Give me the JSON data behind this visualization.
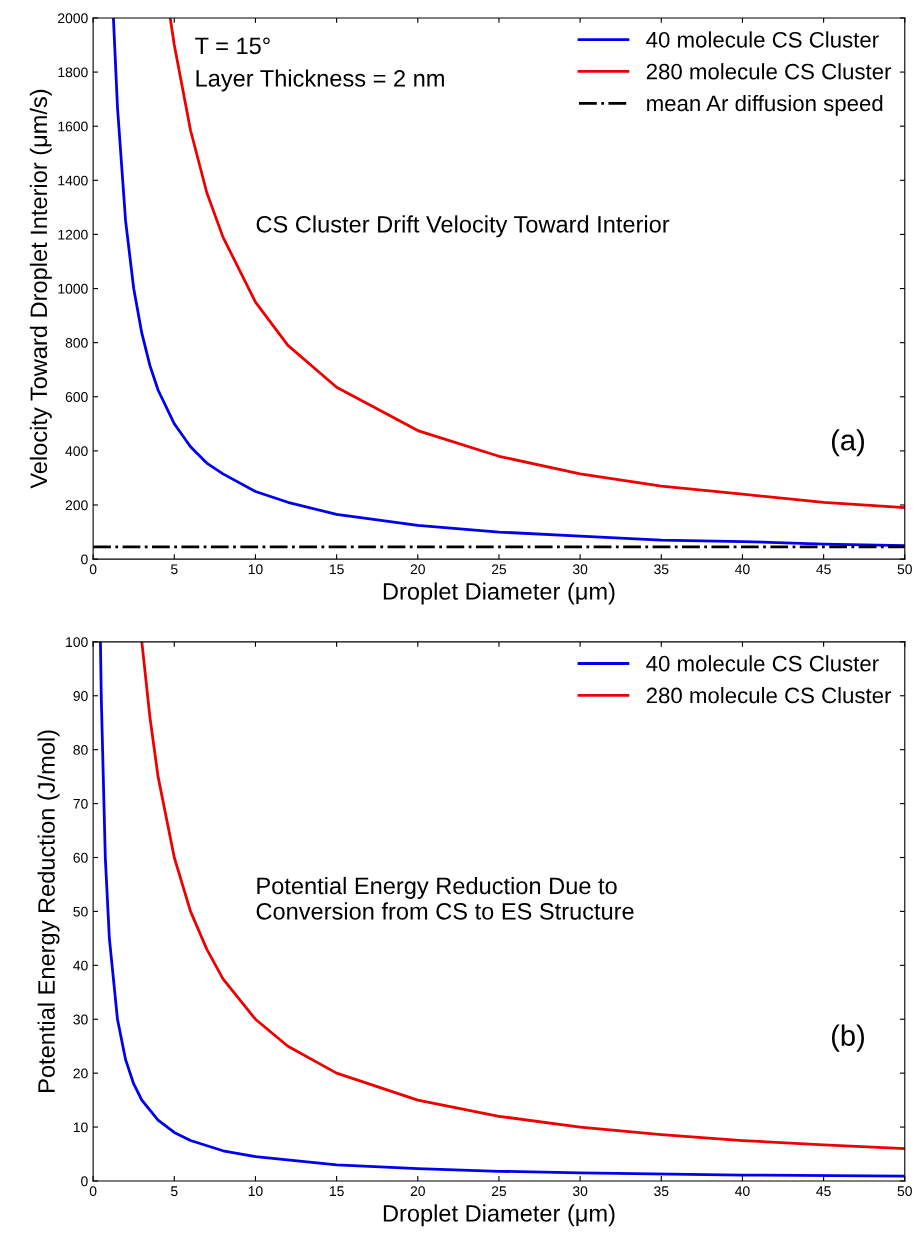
{
  "chart_data": [
    {
      "type": "line",
      "xlabel": "Droplet Diameter (μm)",
      "ylabel": "Velocity Toward Droplet Interior (μm/s)",
      "xlim": [
        0,
        50
      ],
      "ylim": [
        0,
        2000
      ],
      "xticks": [
        0,
        5,
        10,
        15,
        20,
        25,
        30,
        35,
        40,
        45,
        50
      ],
      "yticks": [
        0,
        200,
        400,
        600,
        800,
        1000,
        1200,
        1400,
        1600,
        1800,
        2000
      ],
      "legend": "top right",
      "grid": false,
      "line_style": "solid",
      "annotations": [
        "T = 15°",
        "Layer Thickness = 2 nm",
        "CS Cluster Drift Velocity Toward Interior",
        "(a)"
      ],
      "ref_lines": [
        {
          "axis": "y",
          "value": 45,
          "label": "mean Ar diffusion speed",
          "color": "#000000",
          "line_style": "dashdot"
        }
      ],
      "series": [
        {
          "name": "40 molecule CS Cluster",
          "color": "#0000ee",
          "x": [
            1.25,
            1.5,
            2,
            2.5,
            3,
            3.5,
            4,
            5,
            6,
            7,
            8,
            10,
            12,
            15,
            20,
            25,
            30,
            35,
            40,
            45,
            50
          ],
          "values": [
            2000,
            1670,
            1250,
            1000,
            835,
            715,
            625,
            500,
            415,
            355,
            315,
            250,
            210,
            165,
            125,
            100,
            85,
            70,
            65,
            55,
            50
          ]
        },
        {
          "name": "280 molecule CS Cluster",
          "color": "#ee0000",
          "x": [
            4.75,
            5,
            6,
            7,
            8,
            10,
            12,
            15,
            20,
            25,
            30,
            35,
            40,
            45,
            50
          ],
          "values": [
            2000,
            1900,
            1585,
            1355,
            1190,
            950,
            790,
            635,
            475,
            380,
            315,
            270,
            240,
            210,
            190
          ]
        }
      ]
    },
    {
      "type": "line",
      "xlabel": "Droplet Diameter (μm)",
      "ylabel": "Potential Energy Reduction (J/mol)",
      "xlim": [
        0,
        50
      ],
      "ylim": [
        0,
        100
      ],
      "xticks": [
        0,
        5,
        10,
        15,
        20,
        25,
        30,
        35,
        40,
        45,
        50
      ],
      "yticks": [
        0,
        10,
        20,
        30,
        40,
        50,
        60,
        70,
        80,
        90,
        100
      ],
      "legend": "top right",
      "grid": false,
      "line_style": "solid",
      "annotations": [
        "Potential Energy Reduction Due to\nConversion from CS to ES Structure",
        "(b)"
      ],
      "series": [
        {
          "name": "40 molecule CS Cluster",
          "color": "#0000ee",
          "x": [
            0.45,
            0.5,
            0.75,
            1,
            1.5,
            2,
            2.5,
            3,
            4,
            5,
            6,
            8,
            10,
            15,
            20,
            25,
            30,
            40,
            50
          ],
          "values": [
            100,
            90,
            60,
            45,
            30,
            22.5,
            18,
            15,
            11.3,
            9,
            7.5,
            5.6,
            4.5,
            3,
            2.3,
            1.8,
            1.5,
            1.1,
            0.9
          ]
        },
        {
          "name": "280 molecule CS Cluster",
          "color": "#ee0000",
          "x": [
            3,
            3.5,
            4,
            5,
            6,
            7,
            8,
            10,
            12,
            15,
            20,
            25,
            30,
            35,
            40,
            45,
            50
          ],
          "values": [
            100,
            86,
            75,
            60,
            50,
            43,
            37.5,
            30,
            25,
            20,
            15,
            12,
            10,
            8.6,
            7.5,
            6.7,
            6
          ]
        }
      ]
    }
  ]
}
